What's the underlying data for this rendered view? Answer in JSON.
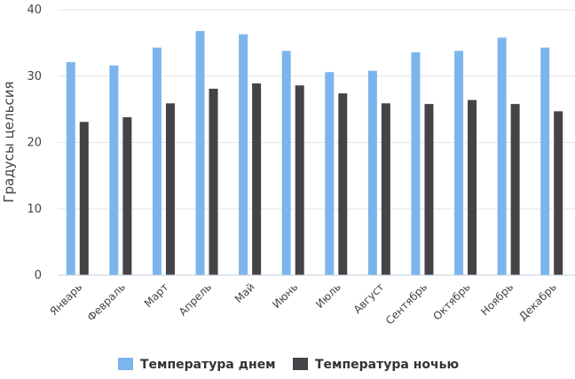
{
  "chart_data": {
    "type": "bar",
    "title": "",
    "xlabel": "",
    "ylabel": "Градусы цельсия",
    "ylim": [
      0,
      40
    ],
    "yticks": [
      0,
      10,
      20,
      30,
      40
    ],
    "grid": true,
    "legend_position": "bottom",
    "categories": [
      "Январь",
      "Февраль",
      "Март",
      "Апрель",
      "Май",
      "Июнь",
      "Июль",
      "Август",
      "Сентябрь",
      "Октябрь",
      "Ноябрь",
      "Декабрь"
    ],
    "series": [
      {
        "name": "Температура днем",
        "color": "#7cb5ec",
        "values": [
          32.1,
          31.6,
          34.3,
          36.8,
          36.3,
          33.8,
          30.6,
          30.8,
          33.6,
          33.8,
          35.8,
          34.3
        ]
      },
      {
        "name": "Температура ночью",
        "color": "#434348",
        "values": [
          23.1,
          23.8,
          25.9,
          28.1,
          28.9,
          28.6,
          27.4,
          25.9,
          25.8,
          26.4,
          25.8,
          24.7
        ]
      }
    ]
  }
}
